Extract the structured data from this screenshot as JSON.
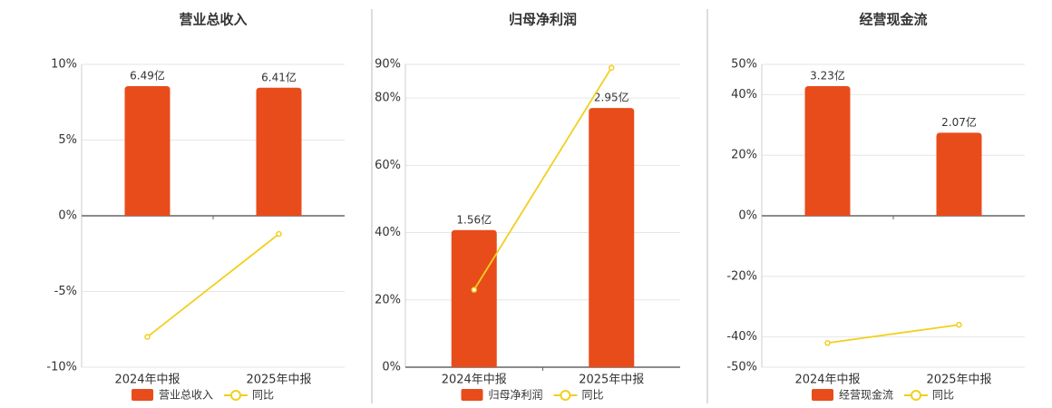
{
  "chart_data": [
    {
      "type": "combo",
      "title": "营业总收入",
      "categories": [
        "2024年中报",
        "2025年中报"
      ],
      "series": [
        {
          "name": "营业总收入",
          "type": "bar",
          "color": "#e84c1b",
          "values": [
            6.49,
            6.41
          ],
          "value_labels": [
            "6.49亿",
            "6.41亿"
          ]
        },
        {
          "name": "同比",
          "type": "line",
          "color": "#f2cf1d",
          "values": [
            -8,
            -1.2
          ]
        }
      ],
      "ylim": [
        -10,
        10
      ],
      "yticks": [
        {
          "value": -10,
          "label": "-10%"
        },
        {
          "value": -5,
          "label": "-5%"
        },
        {
          "value": 0,
          "label": "0%"
        },
        {
          "value": 5,
          "label": "5%"
        },
        {
          "value": 10,
          "label": "10%"
        }
      ],
      "grid": true
    },
    {
      "type": "combo",
      "title": "归母净利润",
      "categories": [
        "2024年中报",
        "2025年中报"
      ],
      "series": [
        {
          "name": "归母净利润",
          "type": "bar",
          "color": "#e84c1b",
          "values": [
            1.56,
            2.95
          ],
          "value_labels": [
            "1.56亿",
            "2.95亿"
          ]
        },
        {
          "name": "同比",
          "type": "line",
          "color": "#f2cf1d",
          "values": [
            23,
            89
          ]
        }
      ],
      "ylim": [
        0,
        90
      ],
      "yticks": [
        {
          "value": 0,
          "label": "0%"
        },
        {
          "value": 20,
          "label": "20%"
        },
        {
          "value": 40,
          "label": "40%"
        },
        {
          "value": 60,
          "label": "60%"
        },
        {
          "value": 80,
          "label": "80%"
        },
        {
          "value": 90,
          "label": "90%"
        }
      ],
      "grid": true
    },
    {
      "type": "combo",
      "title": "经营现金流",
      "categories": [
        "2024年中报",
        "2025年中报"
      ],
      "series": [
        {
          "name": "经营现金流",
          "type": "bar",
          "color": "#e84c1b",
          "values": [
            3.23,
            2.07
          ],
          "value_labels": [
            "3.23亿",
            "2.07亿"
          ]
        },
        {
          "name": "同比",
          "type": "line",
          "color": "#f2cf1d",
          "values": [
            -42,
            -36
          ]
        }
      ],
      "ylim": [
        -50,
        50
      ],
      "yticks": [
        {
          "value": -50,
          "label": "-50%"
        },
        {
          "value": -40,
          "label": "-40%"
        },
        {
          "value": -20,
          "label": "-20%"
        },
        {
          "value": 0,
          "label": "0%"
        },
        {
          "value": 20,
          "label": "20%"
        },
        {
          "value": 40,
          "label": "40%"
        },
        {
          "value": 50,
          "label": "50%"
        }
      ],
      "grid": true
    }
  ]
}
